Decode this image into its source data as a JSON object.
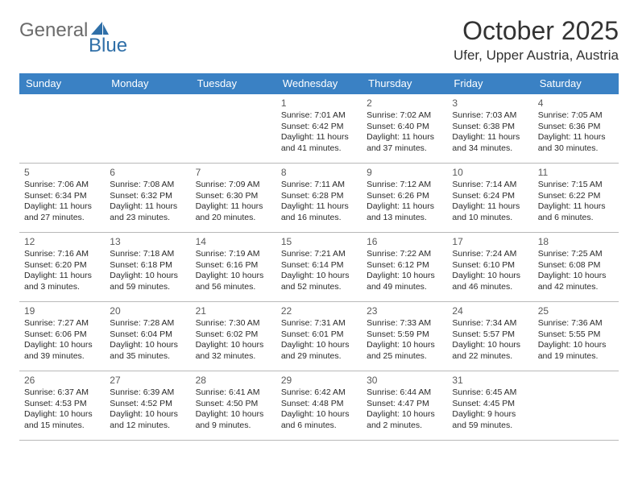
{
  "logo": {
    "text1": "General",
    "text2": "Blue"
  },
  "title": "October 2025",
  "location": "Ufer, Upper Austria, Austria",
  "colors": {
    "header_bg": "#3a81c4",
    "header_text": "#ffffff",
    "row_top_border": "#3a81c4",
    "row_bottom_border": "#b9b9b9",
    "logo_gray": "#6b6b6b",
    "logo_blue": "#2f6fa8",
    "text": "#2a2a2a",
    "daynum": "#5a5a5a"
  },
  "day_headers": [
    "Sunday",
    "Monday",
    "Tuesday",
    "Wednesday",
    "Thursday",
    "Friday",
    "Saturday"
  ],
  "weeks": [
    [
      null,
      null,
      null,
      {
        "n": "1",
        "sr": "7:01 AM",
        "ss": "6:42 PM",
        "dl": "11 hours and 41 minutes."
      },
      {
        "n": "2",
        "sr": "7:02 AM",
        "ss": "6:40 PM",
        "dl": "11 hours and 37 minutes."
      },
      {
        "n": "3",
        "sr": "7:03 AM",
        "ss": "6:38 PM",
        "dl": "11 hours and 34 minutes."
      },
      {
        "n": "4",
        "sr": "7:05 AM",
        "ss": "6:36 PM",
        "dl": "11 hours and 30 minutes."
      }
    ],
    [
      {
        "n": "5",
        "sr": "7:06 AM",
        "ss": "6:34 PM",
        "dl": "11 hours and 27 minutes."
      },
      {
        "n": "6",
        "sr": "7:08 AM",
        "ss": "6:32 PM",
        "dl": "11 hours and 23 minutes."
      },
      {
        "n": "7",
        "sr": "7:09 AM",
        "ss": "6:30 PM",
        "dl": "11 hours and 20 minutes."
      },
      {
        "n": "8",
        "sr": "7:11 AM",
        "ss": "6:28 PM",
        "dl": "11 hours and 16 minutes."
      },
      {
        "n": "9",
        "sr": "7:12 AM",
        "ss": "6:26 PM",
        "dl": "11 hours and 13 minutes."
      },
      {
        "n": "10",
        "sr": "7:14 AM",
        "ss": "6:24 PM",
        "dl": "11 hours and 10 minutes."
      },
      {
        "n": "11",
        "sr": "7:15 AM",
        "ss": "6:22 PM",
        "dl": "11 hours and 6 minutes."
      }
    ],
    [
      {
        "n": "12",
        "sr": "7:16 AM",
        "ss": "6:20 PM",
        "dl": "11 hours and 3 minutes."
      },
      {
        "n": "13",
        "sr": "7:18 AM",
        "ss": "6:18 PM",
        "dl": "10 hours and 59 minutes."
      },
      {
        "n": "14",
        "sr": "7:19 AM",
        "ss": "6:16 PM",
        "dl": "10 hours and 56 minutes."
      },
      {
        "n": "15",
        "sr": "7:21 AM",
        "ss": "6:14 PM",
        "dl": "10 hours and 52 minutes."
      },
      {
        "n": "16",
        "sr": "7:22 AM",
        "ss": "6:12 PM",
        "dl": "10 hours and 49 minutes."
      },
      {
        "n": "17",
        "sr": "7:24 AM",
        "ss": "6:10 PM",
        "dl": "10 hours and 46 minutes."
      },
      {
        "n": "18",
        "sr": "7:25 AM",
        "ss": "6:08 PM",
        "dl": "10 hours and 42 minutes."
      }
    ],
    [
      {
        "n": "19",
        "sr": "7:27 AM",
        "ss": "6:06 PM",
        "dl": "10 hours and 39 minutes."
      },
      {
        "n": "20",
        "sr": "7:28 AM",
        "ss": "6:04 PM",
        "dl": "10 hours and 35 minutes."
      },
      {
        "n": "21",
        "sr": "7:30 AM",
        "ss": "6:02 PM",
        "dl": "10 hours and 32 minutes."
      },
      {
        "n": "22",
        "sr": "7:31 AM",
        "ss": "6:01 PM",
        "dl": "10 hours and 29 minutes."
      },
      {
        "n": "23",
        "sr": "7:33 AM",
        "ss": "5:59 PM",
        "dl": "10 hours and 25 minutes."
      },
      {
        "n": "24",
        "sr": "7:34 AM",
        "ss": "5:57 PM",
        "dl": "10 hours and 22 minutes."
      },
      {
        "n": "25",
        "sr": "7:36 AM",
        "ss": "5:55 PM",
        "dl": "10 hours and 19 minutes."
      }
    ],
    [
      {
        "n": "26",
        "sr": "6:37 AM",
        "ss": "4:53 PM",
        "dl": "10 hours and 15 minutes."
      },
      {
        "n": "27",
        "sr": "6:39 AM",
        "ss": "4:52 PM",
        "dl": "10 hours and 12 minutes."
      },
      {
        "n": "28",
        "sr": "6:41 AM",
        "ss": "4:50 PM",
        "dl": "10 hours and 9 minutes."
      },
      {
        "n": "29",
        "sr": "6:42 AM",
        "ss": "4:48 PM",
        "dl": "10 hours and 6 minutes."
      },
      {
        "n": "30",
        "sr": "6:44 AM",
        "ss": "4:47 PM",
        "dl": "10 hours and 2 minutes."
      },
      {
        "n": "31",
        "sr": "6:45 AM",
        "ss": "4:45 PM",
        "dl": "9 hours and 59 minutes."
      },
      null
    ]
  ],
  "labels": {
    "sunrise": "Sunrise:",
    "sunset": "Sunset:",
    "daylight": "Daylight:"
  }
}
